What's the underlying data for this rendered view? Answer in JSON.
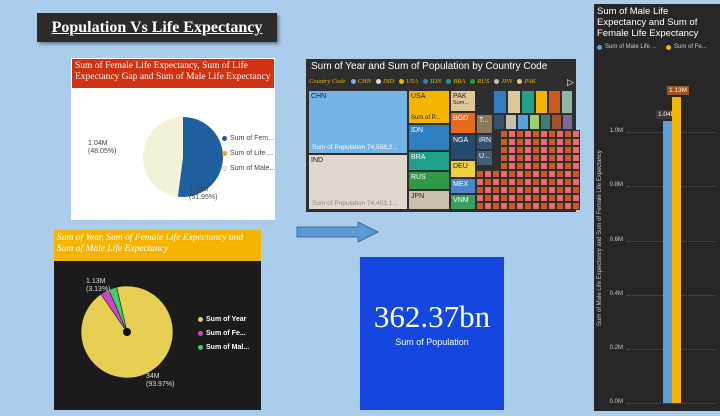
{
  "dashboard_title": "Population Vs Life Expectancy",
  "pie1": {
    "title": "Sum of Female Life Expectancy, Sum of Life Expectancy Gap and Sum of Male Life Expectancy",
    "slice_labels": [
      {
        "value": "1.04M",
        "pct": "(48.05%)"
      },
      {
        "value": "1.13M",
        "pct": "(51.95%)"
      }
    ],
    "legend": [
      "Sum of Fem...",
      "Sum of Life ...",
      "Sum of Male..."
    ],
    "colors": [
      "#1f5fa0",
      "#f0a020",
      "#f3f2d6"
    ]
  },
  "treemap": {
    "title": "Sum of Year and Sum of Population by Country Code",
    "legend_title": "Country Code",
    "legend": [
      {
        "name": "CHN",
        "color": "#74b4e6"
      },
      {
        "name": "IND",
        "color": "#e0d8cc"
      },
      {
        "name": "USA",
        "color": "#f5b400"
      },
      {
        "name": "IDN",
        "color": "#2d7fc0"
      },
      {
        "name": "BRA",
        "color": "#1ea08a"
      },
      {
        "name": "RUS",
        "color": "#2e9a48"
      },
      {
        "name": "JPN",
        "color": "#c9c0ad"
      },
      {
        "name": "PAK",
        "color": "#e0c79a"
      }
    ],
    "cells": [
      {
        "code": "CHN",
        "label": "CHN",
        "sub": "Sum of Population 74,558,2..."
      },
      {
        "code": "IND",
        "label": "IND",
        "sub": "Sum of Population 74,453,1..."
      },
      {
        "code": "USA",
        "label": "USA",
        "sub": "Sum of P..."
      },
      {
        "code": "IDN",
        "label": "IDN",
        "sub": ""
      },
      {
        "code": "BRA",
        "label": "BRA",
        "sub": ""
      },
      {
        "code": "RUS",
        "label": "RUS",
        "sub": ""
      },
      {
        "code": "JPN",
        "label": "JPN",
        "sub": ""
      },
      {
        "code": "PAK",
        "label": "PAK",
        "sub": "Sum..."
      },
      {
        "code": "BGD",
        "label": "BGD",
        "sub": ""
      },
      {
        "code": "NGA",
        "label": "NGA",
        "sub": ""
      },
      {
        "code": "DEU",
        "label": "DEU",
        "sub": ""
      },
      {
        "code": "MEX",
        "label": "MEX",
        "sub": ""
      },
      {
        "code": "VNM",
        "label": "VNM",
        "sub": ""
      },
      {
        "code": "T",
        "label": "T...",
        "sub": ""
      },
      {
        "code": "IRN",
        "label": "IRN",
        "sub": ""
      },
      {
        "code": "U",
        "label": "U...",
        "sub": ""
      }
    ]
  },
  "pie2": {
    "title": "Sum of Year, Sum of Female Life Expectancy and Sum of Male Life Expectancy",
    "slice_labels": [
      {
        "value": "1.13M",
        "pct": "(3.13%)"
      },
      {
        "value": "34M",
        "pct": "(93.97%)"
      }
    ],
    "legend": [
      "Sum of Year",
      "Sum of Fe...",
      "Sum of Mal..."
    ],
    "colors": [
      "#e6cf52",
      "#cc44cc",
      "#44cc66"
    ]
  },
  "kpi": {
    "value": "362.37bn",
    "label": "Sum of Population"
  },
  "barchart": {
    "title": "Sum of Male Life Expectancy and Sum of Female Life Expectancy",
    "legend": [
      "Sum of Male Life ...",
      "Sum of Fe..."
    ],
    "colors": [
      "#5aa0e0",
      "#f5b400"
    ],
    "y_axis_label": "Sum of Male Life Expectancy and Sum of Female Life Expectancy",
    "y_ticks": [
      "1.0M",
      "0.8M",
      "0.6M",
      "0.4M",
      "0.2M",
      "0.0M"
    ],
    "data_labels": [
      "1.04M",
      "1.13M"
    ]
  },
  "chart_data": [
    {
      "type": "pie",
      "title": "Sum of Female Life Expectancy, Sum of Life Expectancy Gap and Sum of Male Life Expectancy",
      "categories": [
        "Sum of Fem...",
        "Sum of Life ...",
        "Sum of Male..."
      ],
      "values": [
        1.13,
        0.0,
        1.04
      ],
      "value_labels": [
        "1.13M (51.95%)",
        "",
        "1.04M (48.05%)"
      ],
      "legend": "right"
    },
    {
      "type": "pie",
      "title": "Sum of Year, Sum of Female Life Expectancy and Sum of Male Life Expectancy",
      "categories": [
        "Sum of Year",
        "Sum of Fe...",
        "Sum of Mal..."
      ],
      "values": [
        34,
        1.13,
        1.04
      ],
      "value_labels": [
        "34M (93.97%)",
        "1.13M (3.13%)",
        ""
      ],
      "legend": "right"
    },
    {
      "type": "bar",
      "title": "Sum of Male Life Expectancy and Sum of Female Life Expectancy",
      "series": [
        {
          "name": "Sum of Male Life ...",
          "values": [
            1.04
          ]
        },
        {
          "name": "Sum of Fe...",
          "values": [
            1.13
          ]
        }
      ],
      "ylabel": "Sum of Male Life Expectancy and Sum of Female Life Expectancy",
      "ylim": [
        0,
        1.2
      ],
      "legend": "top"
    }
  ]
}
